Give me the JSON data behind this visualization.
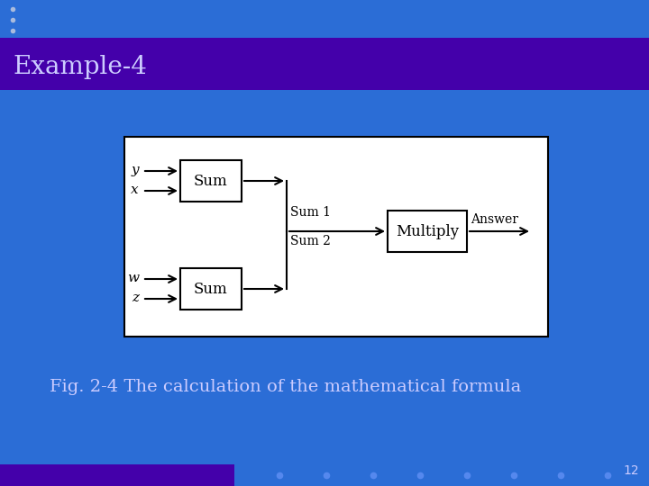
{
  "bg_color": "#2B6DD6",
  "header_bg": "#4400AA",
  "header_text": "Example-4",
  "header_text_color": "#ccccff",
  "fig_caption": "Fig. 2-4 The calculation of the mathematical formula",
  "fig_caption_color": "#ccccff",
  "page_number": "12",
  "page_number_color": "#ccccff",
  "diagram_bg": "#ffffff",
  "diagram_border": "#000000",
  "box_color": "#ffffff",
  "box_edge": "#000000",
  "arrow_color": "#000000",
  "text_color": "#000000",
  "bullet_color": "#aabbdd",
  "footer_bar_color": "#4400AA",
  "dot_color": "#5588ee"
}
